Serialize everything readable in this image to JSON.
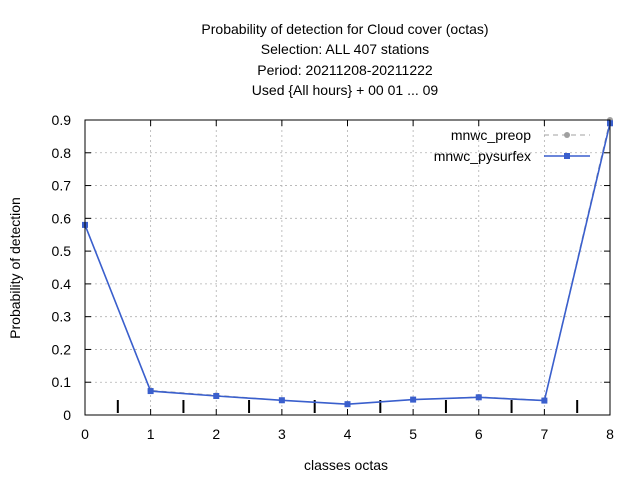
{
  "chart_data": {
    "type": "line",
    "title_lines": [
      "Probability of detection  for Cloud cover (octas)",
      "Selection: ALL    407 stations",
      "Period: 20211208-20211222",
      "Used {All hours} + 00 01 ... 09"
    ],
    "xlabel": "classes octas",
    "ylabel": "Probability of detection",
    "xlim": [
      0,
      8
    ],
    "ylim": [
      0,
      0.9
    ],
    "x_ticks": [
      "0",
      "1",
      "2",
      "3",
      "4",
      "5",
      "6",
      "7",
      "8"
    ],
    "y_ticks": [
      "0",
      "0.1",
      "0.2",
      "0.3",
      "0.4",
      "0.5",
      "0.6",
      "0.7",
      "0.8",
      "0.9"
    ],
    "grid": true,
    "legend_position": "top-right",
    "x": [
      0,
      1,
      2,
      3,
      4,
      5,
      6,
      7,
      8
    ],
    "series": [
      {
        "name": "mnwc_preop",
        "color": "#a0a0a0",
        "dash": true,
        "values": [
          0.58,
          0.075,
          0.06,
          0.045,
          0.033,
          0.047,
          0.055,
          0.045,
          0.9
        ]
      },
      {
        "name": "mnwc_pysurfex",
        "color": "#3a5fcd",
        "dash": false,
        "values": [
          0.58,
          0.073,
          0.058,
          0.045,
          0.033,
          0.047,
          0.054,
          0.044,
          0.89
        ]
      }
    ],
    "class_markers_x": [
      0.5,
      1.5,
      2.5,
      3.5,
      4.5,
      5.5,
      6.5,
      7.5
    ]
  }
}
